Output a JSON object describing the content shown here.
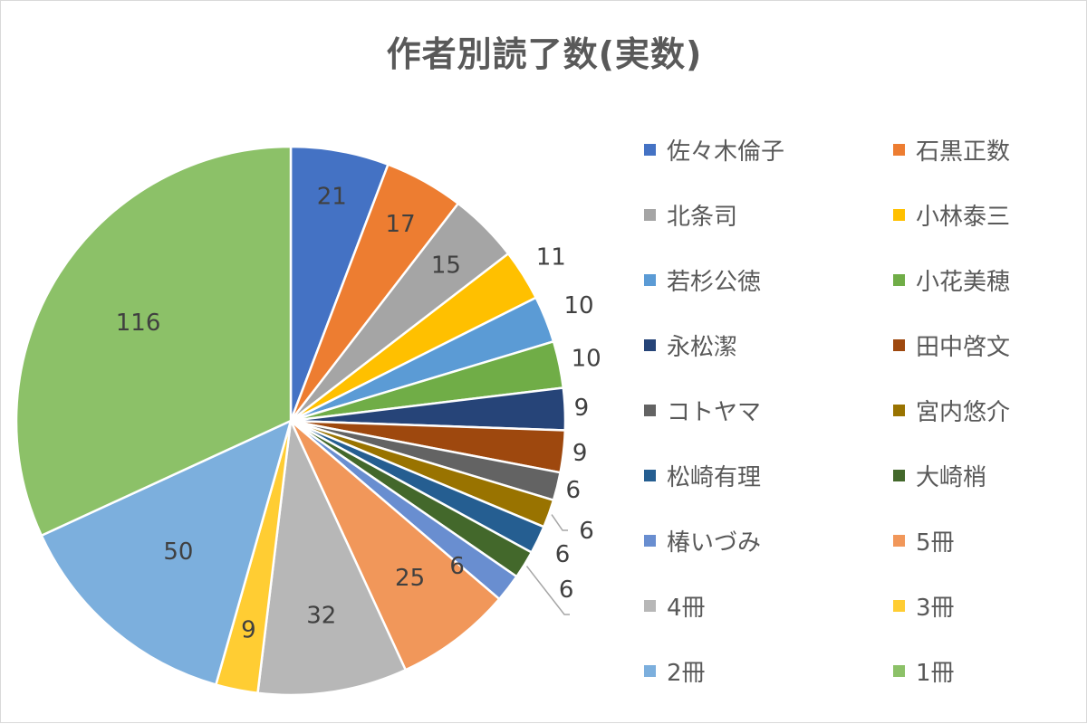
{
  "chart_data": {
    "type": "pie",
    "title": "作者別読了数(実数)",
    "legend_position": "right",
    "slices": [
      {
        "label": "佐々木倫子",
        "value": 21,
        "color": "#4472c4"
      },
      {
        "label": "石黒正数",
        "value": 17,
        "color": "#ed7d31"
      },
      {
        "label": "北条司",
        "value": 15,
        "color": "#a5a5a5"
      },
      {
        "label": "小林泰三",
        "value": 11,
        "color": "#ffc000"
      },
      {
        "label": "若杉公徳",
        "value": 10,
        "color": "#5b9bd5"
      },
      {
        "label": "小花美穂",
        "value": 10,
        "color": "#70ad47"
      },
      {
        "label": "永松潔",
        "value": 9,
        "color": "#264478"
      },
      {
        "label": "田中啓文",
        "value": 9,
        "color": "#9e480e"
      },
      {
        "label": "コトヤマ",
        "value": 6,
        "color": "#636363"
      },
      {
        "label": "宮内悠介",
        "value": 6,
        "color": "#997300"
      },
      {
        "label": "松崎有理",
        "value": 6,
        "color": "#255e91"
      },
      {
        "label": "大崎梢",
        "value": 6,
        "color": "#43682b"
      },
      {
        "label": "椿いづみ",
        "value": 6,
        "color": "#698ed0"
      },
      {
        "label": "5冊",
        "value": 25,
        "color": "#f1975a"
      },
      {
        "label": "4冊",
        "value": 32,
        "color": "#b7b7b7"
      },
      {
        "label": "3冊",
        "value": 9,
        "color": "#ffcd33"
      },
      {
        "label": "2冊",
        "value": 50,
        "color": "#7cafdd"
      },
      {
        "label": "1冊",
        "value": 116,
        "color": "#8cc168"
      }
    ],
    "data_label_color": "#404040",
    "leader_line_color": "#a6a6a6"
  }
}
